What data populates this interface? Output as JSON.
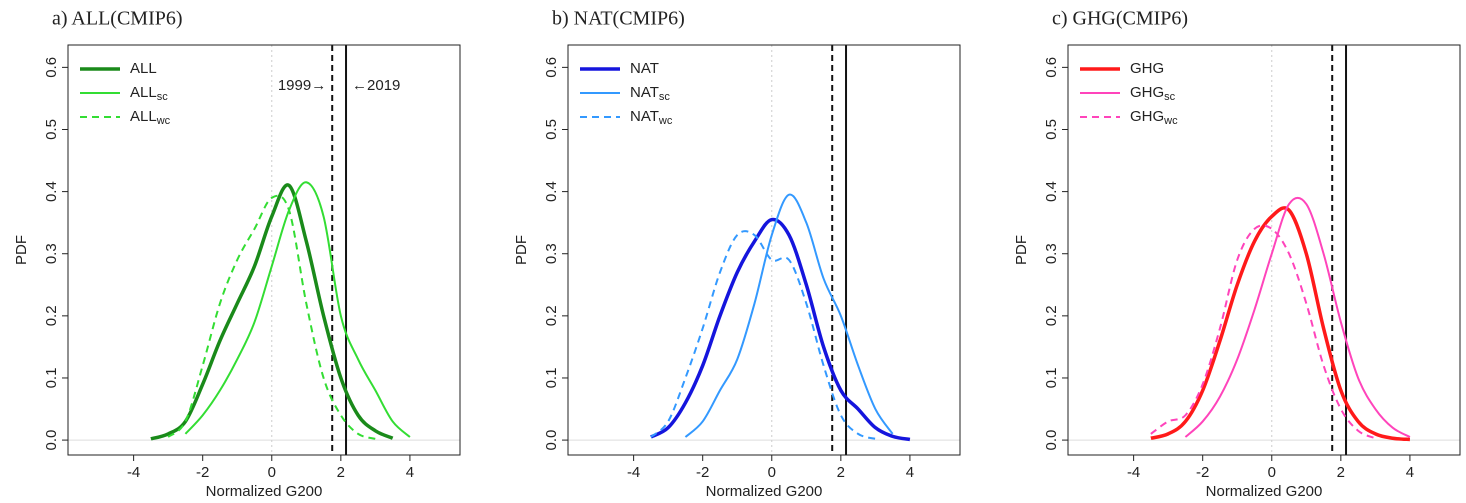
{
  "chart_data": [
    {
      "type": "line",
      "title": "a) ALL(CMIP6)",
      "x_label": "Normalized G200",
      "y_label": "PDF",
      "x": [
        -3.5,
        -3,
        -2.5,
        -2,
        -1.5,
        -1,
        -0.5,
        0,
        0.5,
        1,
        1.5,
        2,
        2.5,
        3,
        3.5,
        4
      ],
      "series": [
        {
          "name": "ALL",
          "color": "#1a8a1a",
          "style": "thick",
          "values": [
            0.002,
            0.01,
            0.03,
            0.09,
            0.16,
            0.22,
            0.28,
            0.36,
            0.41,
            0.32,
            0.2,
            0.1,
            0.04,
            0.015,
            0.003,
            null
          ]
        },
        {
          "name": "ALL",
          "name_sub": "sc",
          "color": "#33dd33",
          "style": "thin",
          "values": [
            null,
            null,
            0.01,
            0.04,
            0.08,
            0.13,
            0.19,
            0.28,
            0.37,
            0.415,
            0.36,
            0.2,
            0.13,
            0.08,
            0.03,
            0.005
          ]
        },
        {
          "name": "ALL",
          "name_sub": "wc",
          "color": "#33dd33",
          "style": "dashed",
          "values": [
            null,
            0.005,
            0.03,
            0.12,
            0.22,
            0.29,
            0.34,
            0.39,
            0.37,
            0.22,
            0.1,
            0.04,
            0.01,
            0.002,
            null,
            null
          ]
        }
      ],
      "vlines": [
        {
          "value": 1.75,
          "style": "dashed",
          "label": "1999→"
        },
        {
          "value": 2.15,
          "style": "solid",
          "label": "←2019"
        }
      ],
      "xlim": [
        -5.9,
        5.45
      ],
      "ylim": [
        -0.024,
        0.636
      ],
      "xticks": [
        -4,
        -2,
        0,
        2,
        4
      ],
      "yticks": [
        {
          "value": 0,
          "label": "0.0"
        },
        0.1,
        0.2,
        0.3,
        0.4,
        0.5,
        0.6
      ],
      "zero_lines": true,
      "legend": "top-left"
    },
    {
      "type": "line",
      "title": "b) NAT(CMIP6)",
      "x_label": "Normalized G200",
      "y_label": "PDF",
      "x": [
        -3.5,
        -3,
        -2.5,
        -2,
        -1.5,
        -1,
        -0.5,
        0,
        0.5,
        1,
        1.5,
        2,
        2.5,
        3,
        3.5,
        4
      ],
      "series": [
        {
          "name": "NAT",
          "color": "#1515dd",
          "style": "thick",
          "values": [
            0.005,
            0.02,
            0.06,
            0.12,
            0.2,
            0.27,
            0.32,
            0.355,
            0.33,
            0.25,
            0.15,
            0.08,
            0.05,
            0.02,
            0.006,
            0.001
          ]
        },
        {
          "name": "NAT",
          "name_sub": "sc",
          "color": "#3399ff",
          "style": "thin",
          "values": [
            null,
            null,
            0.005,
            0.03,
            0.08,
            0.13,
            0.22,
            0.33,
            0.395,
            0.35,
            0.26,
            0.2,
            0.12,
            0.05,
            0.01,
            null
          ]
        },
        {
          "name": "NAT",
          "name_sub": "wc",
          "color": "#3399ff",
          "style": "dashed",
          "values": [
            0.005,
            0.03,
            0.1,
            0.18,
            0.27,
            0.33,
            0.33,
            0.29,
            0.29,
            0.22,
            0.12,
            0.04,
            0.01,
            0.002,
            null,
            null
          ]
        }
      ],
      "vlines": [
        {
          "value": 1.75,
          "style": "dashed"
        },
        {
          "value": 2.15,
          "style": "solid"
        }
      ],
      "xlim": [
        -5.9,
        5.45
      ],
      "ylim": [
        -0.024,
        0.636
      ],
      "xticks": [
        -4,
        -2,
        0,
        2,
        4
      ],
      "yticks": [
        {
          "value": 0,
          "label": "0.0"
        },
        0.1,
        0.2,
        0.3,
        0.4,
        0.5,
        0.6
      ],
      "zero_lines": true,
      "legend": "top-left"
    },
    {
      "type": "line",
      "title": "c) GHG(CMIP6)",
      "x_label": "Normalized G200",
      "y_label": "PDF",
      "x": [
        -3.5,
        -3,
        -2.5,
        -2,
        -1.5,
        -1,
        -0.5,
        0,
        0.5,
        1,
        1.5,
        2,
        2.5,
        3,
        3.5,
        4
      ],
      "series": [
        {
          "name": "GHG",
          "color": "#ff1a1a",
          "style": "thick",
          "values": [
            0.003,
            0.01,
            0.03,
            0.08,
            0.16,
            0.25,
            0.32,
            0.36,
            0.37,
            0.3,
            0.18,
            0.08,
            0.03,
            0.01,
            0.003,
            0.001
          ]
        },
        {
          "name": "GHG",
          "name_sub": "sc",
          "color": "#ff44bb",
          "style": "thin",
          "values": [
            null,
            null,
            0.005,
            0.03,
            0.07,
            0.13,
            0.21,
            0.3,
            0.38,
            0.38,
            0.3,
            0.19,
            0.1,
            0.05,
            0.02,
            0.005
          ]
        },
        {
          "name": "GHG",
          "name_sub": "wc",
          "color": "#ff44bb",
          "style": "dashed",
          "values": [
            0.01,
            0.03,
            0.04,
            0.09,
            0.18,
            0.29,
            0.34,
            0.34,
            0.3,
            0.22,
            0.12,
            0.05,
            0.015,
            0.003,
            null,
            null
          ]
        }
      ],
      "vlines": [
        {
          "value": 1.75,
          "style": "dashed"
        },
        {
          "value": 2.15,
          "style": "solid"
        }
      ],
      "xlim": [
        -5.9,
        5.45
      ],
      "ylim": [
        -0.024,
        0.636
      ],
      "xticks": [
        -4,
        -2,
        0,
        2,
        4
      ],
      "yticks": [
        {
          "value": 0,
          "label": "0.0"
        },
        0.1,
        0.2,
        0.3,
        0.4,
        0.5,
        0.6
      ],
      "zero_lines": true,
      "legend": "top-left"
    }
  ]
}
